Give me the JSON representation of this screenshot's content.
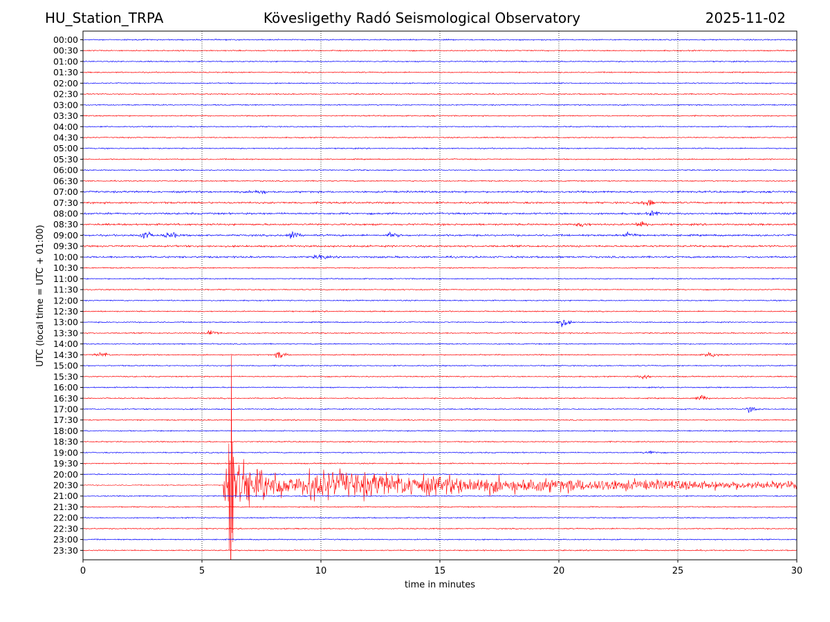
{
  "header": {
    "station": "HU_Station_TRPA",
    "title": "Kövesligethy Radó Seismological Observatory",
    "date": "2025-11-02"
  },
  "chart_data": {
    "type": "line",
    "title": "Kövesligethy Radó Seismological Observatory",
    "xlabel": "time in minutes",
    "ylabel": "UTC (local time = UTC + 01:00)",
    "xlim": [
      0,
      30
    ],
    "x_ticks": [
      "0",
      "5",
      "10",
      "15",
      "20",
      "25",
      "30"
    ],
    "rows": [
      "00:00",
      "00:30",
      "01:00",
      "01:30",
      "02:00",
      "02:30",
      "03:00",
      "03:30",
      "04:00",
      "04:30",
      "05:00",
      "05:30",
      "06:00",
      "06:30",
      "07:00",
      "07:30",
      "08:00",
      "08:30",
      "09:00",
      "09:30",
      "10:00",
      "10:30",
      "11:00",
      "11:30",
      "12:00",
      "12:30",
      "13:00",
      "13:30",
      "14:00",
      "14:30",
      "15:00",
      "15:30",
      "16:00",
      "16:30",
      "17:00",
      "17:30",
      "18:00",
      "18:30",
      "19:00",
      "19:30",
      "20:00",
      "20:30",
      "21:00",
      "21:30",
      "22:00",
      "22:30",
      "23:00",
      "23:30"
    ],
    "row_colors": [
      "#0000ff",
      "#ff0000"
    ],
    "grid": "vertical dotted",
    "events": [
      {
        "row": "07:00",
        "minute": 7.4,
        "amplitude": 0.35
      },
      {
        "row": "07:30",
        "minute": 23.8,
        "amplitude": 0.45
      },
      {
        "row": "08:00",
        "minute": 24.0,
        "amplitude": 0.3
      },
      {
        "row": "08:30",
        "minute": 23.5,
        "amplitude": 0.45
      },
      {
        "row": "08:30",
        "minute": 21.0,
        "amplitude": 0.3
      },
      {
        "row": "09:00",
        "minute": 2.6,
        "amplitude": 0.5
      },
      {
        "row": "09:00",
        "minute": 3.7,
        "amplitude": 0.45
      },
      {
        "row": "09:00",
        "minute": 8.8,
        "amplitude": 0.55
      },
      {
        "row": "09:00",
        "minute": 13.0,
        "amplitude": 0.3
      },
      {
        "row": "09:00",
        "minute": 23.0,
        "amplitude": 0.4
      },
      {
        "row": "10:00",
        "minute": 10.0,
        "amplitude": 0.3
      },
      {
        "row": "13:00",
        "minute": 20.2,
        "amplitude": 0.55
      },
      {
        "row": "13:30",
        "minute": 5.4,
        "amplitude": 0.45
      },
      {
        "row": "14:30",
        "minute": 0.8,
        "amplitude": 0.35
      },
      {
        "row": "14:30",
        "minute": 8.3,
        "amplitude": 0.45
      },
      {
        "row": "14:30",
        "minute": 26.4,
        "amplitude": 0.35
      },
      {
        "row": "15:30",
        "minute": 23.6,
        "amplitude": 0.3
      },
      {
        "row": "16:30",
        "minute": 26.0,
        "amplitude": 0.4
      },
      {
        "row": "17:00",
        "minute": 28.1,
        "amplitude": 0.5
      },
      {
        "row": "19:00",
        "minute": 23.9,
        "amplitude": 0.3
      }
    ],
    "earthquake": {
      "row": "20:30",
      "onset_minute": 5.9,
      "coda_end_minute": 30
    }
  }
}
